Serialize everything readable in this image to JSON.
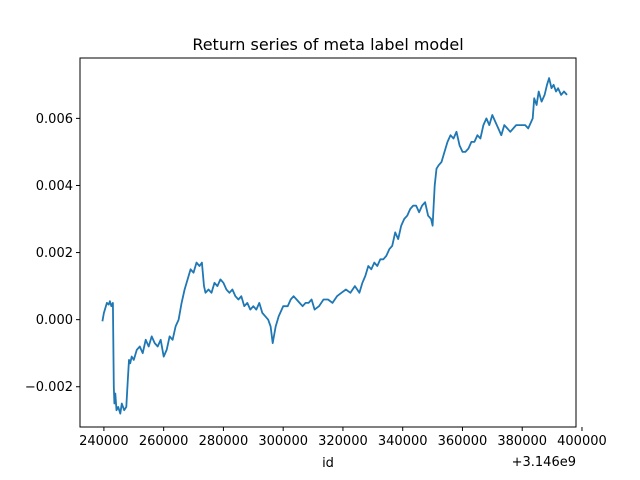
{
  "chart_data": {
    "type": "line",
    "title": "Return series of meta label model",
    "xlabel": "id",
    "ylabel": "",
    "x_offset_label": "+3.146e9",
    "xlim": [
      232000,
      398000
    ],
    "ylim": [
      -0.0032,
      0.0078
    ],
    "grid": false,
    "line_color": "#1f77b4",
    "x_ticks": [
      240000,
      260000,
      280000,
      300000,
      320000,
      340000,
      360000,
      380000,
      400000
    ],
    "x_tick_labels": [
      "240000",
      "260000",
      "280000",
      "300000",
      "320000",
      "340000",
      "360000",
      "380000",
      "400000"
    ],
    "y_ticks": [
      -0.002,
      0.0,
      0.002,
      0.004,
      0.006
    ],
    "y_tick_labels": [
      "−0.002",
      "0.000",
      "0.002",
      "0.004",
      "0.006"
    ],
    "series": [
      {
        "x": [
          239500,
          240000,
          240500,
          241000,
          241600,
          242000,
          242500,
          243000,
          243300,
          243500,
          243800,
          244200,
          244800,
          245500,
          246000,
          246800,
          247500,
          248000,
          248400,
          248800,
          249300,
          250000,
          251000,
          252000,
          253000,
          254000,
          255000,
          256000,
          257000,
          258000,
          259000,
          260000,
          261000,
          262000,
          263000,
          264000,
          265000,
          266000,
          267000,
          268000,
          269000,
          270000,
          271000,
          272000,
          272800,
          273500,
          274000,
          275000,
          276000,
          277000,
          278000,
          279000,
          280000,
          281000,
          282000,
          283000,
          284000,
          285000,
          286000,
          287000,
          288000,
          289000,
          290000,
          291000,
          292000,
          293000,
          294000,
          295000,
          295800,
          296500,
          297500,
          298500,
          300000,
          301500,
          302500,
          303500,
          304500,
          305500,
          306500,
          307500,
          308500,
          309500,
          310500,
          312000,
          313500,
          315000,
          316500,
          318000,
          319500,
          321000,
          322500,
          324000,
          325500,
          326500,
          327500,
          328500,
          329500,
          330500,
          331500,
          332500,
          333500,
          334500,
          335500,
          336500,
          337500,
          338500,
          339500,
          340500,
          341500,
          342500,
          343500,
          344500,
          345500,
          346500,
          347500,
          348500,
          349500,
          350000,
          350700,
          351300,
          352000,
          353000,
          354000,
          355000,
          356000,
          357000,
          358000,
          359000,
          360000,
          361000,
          362000,
          363000,
          364000,
          365000,
          366000,
          367000,
          368000,
          369000,
          370000,
          371000,
          372000,
          373000,
          374000,
          375000,
          376000,
          377000,
          378000,
          379000,
          380000,
          381000,
          382000,
          383000,
          383500,
          384000,
          384800,
          385500,
          386500,
          387500,
          388300,
          389000,
          389800,
          390500,
          391300,
          392000,
          393000,
          394000,
          395000
        ],
        "y": [
          -5e-05,
          0.0002,
          0.00035,
          0.0005,
          0.00045,
          0.00055,
          0.0004,
          0.0005,
          -0.002,
          -0.0025,
          -0.0022,
          -0.0027,
          -0.0026,
          -0.0028,
          -0.0025,
          -0.0027,
          -0.0026,
          -0.0018,
          -0.0012,
          -0.0013,
          -0.0011,
          -0.0012,
          -0.0009,
          -0.0008,
          -0.001,
          -0.0006,
          -0.0008,
          -0.0005,
          -0.0007,
          -0.0008,
          -0.0006,
          -0.0011,
          -0.0009,
          -0.0005,
          -0.0006,
          -0.0002,
          0.0,
          0.0005,
          0.0009,
          0.0012,
          0.0015,
          0.0014,
          0.0017,
          0.0016,
          0.0017,
          0.001,
          0.0008,
          0.0009,
          0.0008,
          0.0011,
          0.001,
          0.0012,
          0.0011,
          0.0009,
          0.0008,
          0.0009,
          0.0007,
          0.0006,
          0.0007,
          0.0004,
          0.0005,
          0.0003,
          0.0004,
          0.0003,
          0.0005,
          0.0002,
          0.0001,
          0.0,
          -0.0002,
          -0.0007,
          -0.0002,
          0.0001,
          0.0004,
          0.0004,
          0.0006,
          0.0007,
          0.0006,
          0.0005,
          0.0004,
          0.0005,
          0.0005,
          0.0006,
          0.0003,
          0.0004,
          0.0006,
          0.0006,
          0.0005,
          0.0007,
          0.0008,
          0.0009,
          0.0008,
          0.001,
          0.0008,
          0.0011,
          0.0013,
          0.0016,
          0.0015,
          0.0017,
          0.0016,
          0.0018,
          0.0018,
          0.0019,
          0.0021,
          0.0022,
          0.0026,
          0.0024,
          0.0028,
          0.003,
          0.0031,
          0.0033,
          0.0034,
          0.0034,
          0.0032,
          0.0034,
          0.0035,
          0.0031,
          0.003,
          0.0028,
          0.004,
          0.0045,
          0.0046,
          0.0047,
          0.005,
          0.0053,
          0.0055,
          0.0054,
          0.0056,
          0.0052,
          0.005,
          0.005,
          0.0051,
          0.0053,
          0.0053,
          0.0055,
          0.0054,
          0.0058,
          0.006,
          0.0058,
          0.0061,
          0.0059,
          0.0057,
          0.0055,
          0.0058,
          0.0057,
          0.0056,
          0.0057,
          0.0058,
          0.0058,
          0.0058,
          0.0058,
          0.0057,
          0.0059,
          0.006,
          0.0066,
          0.0064,
          0.0068,
          0.0065,
          0.0067,
          0.007,
          0.0072,
          0.0069,
          0.007,
          0.0068,
          0.0069,
          0.0067,
          0.0068,
          0.0067
        ]
      }
    ]
  }
}
